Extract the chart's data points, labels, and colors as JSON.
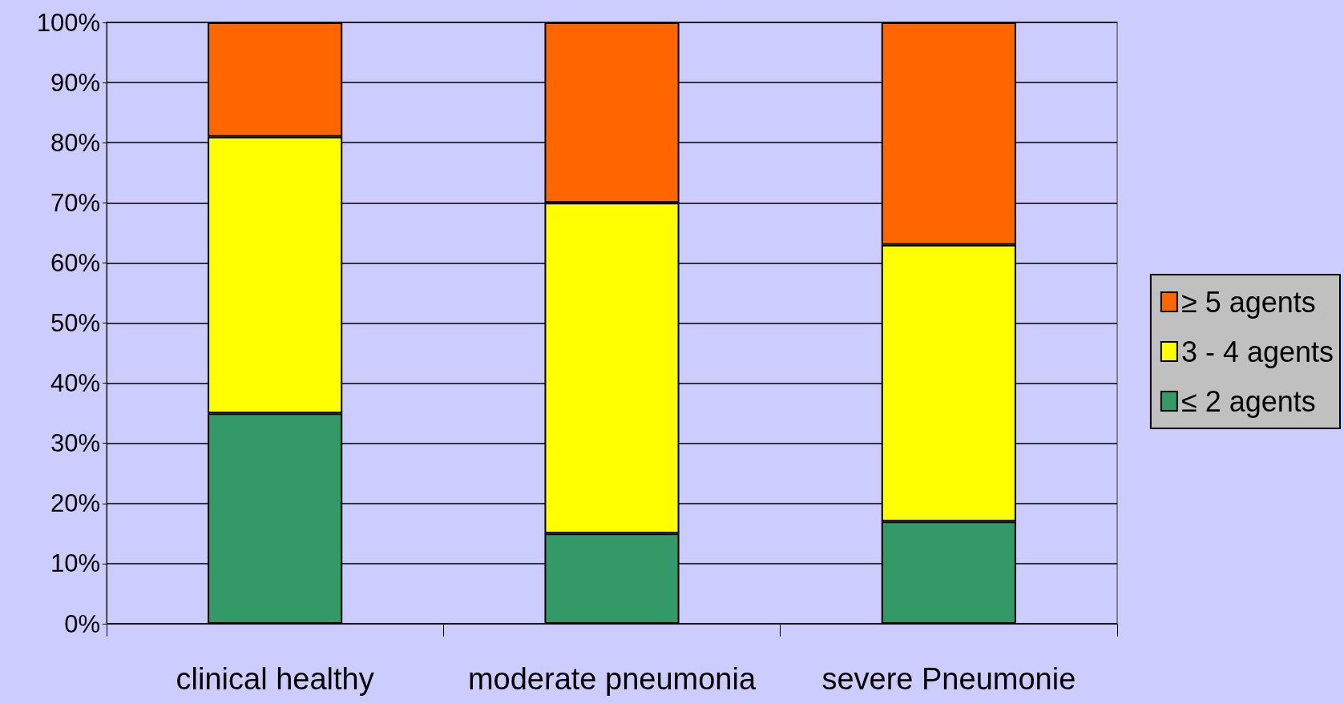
{
  "chart_data": {
    "type": "bar",
    "stacked": true,
    "categories": [
      "clinical healthy",
      "moderate pneumonia",
      "severe Pneumonie"
    ],
    "series": [
      {
        "name": "≤ 2 agents",
        "color": "#339966",
        "values": [
          35,
          15,
          17
        ]
      },
      {
        "name": "3 - 4 agents",
        "color": "#ffff00",
        "values": [
          46,
          55,
          46
        ]
      },
      {
        "name": "≥ 5 agents",
        "color": "#ff6600",
        "values": [
          19,
          30,
          37
        ]
      }
    ],
    "ylim": [
      0,
      100
    ],
    "yticks": [
      {
        "value": 0,
        "label": "0%"
      },
      {
        "value": 10,
        "label": "10%"
      },
      {
        "value": 20,
        "label": "20%"
      },
      {
        "value": 30,
        "label": "30%"
      },
      {
        "value": 40,
        "label": "40%"
      },
      {
        "value": 50,
        "label": "50%"
      },
      {
        "value": 60,
        "label": "60%"
      },
      {
        "value": 70,
        "label": "70%"
      },
      {
        "value": 80,
        "label": "80%"
      },
      {
        "value": 90,
        "label": "90%"
      },
      {
        "value": 100,
        "label": "100%"
      }
    ],
    "grid": "y",
    "legend": "right"
  }
}
